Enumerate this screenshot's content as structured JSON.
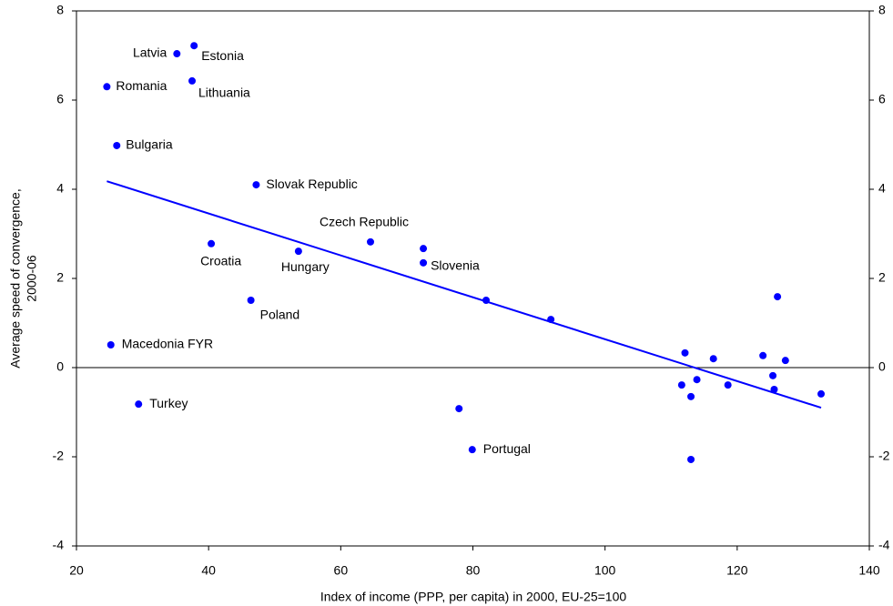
{
  "chart_data": {
    "type": "scatter",
    "x_label": "Index of income (PPP, per capita) in 2000, EU-25=100",
    "y_label": [
      "Average speed of convergence,",
      "2000-06"
    ],
    "color": "#0000ff",
    "x": [
      35.2,
      37.8,
      24.6,
      37.5,
      26.1,
      47.2,
      64.5,
      40.4,
      53.6,
      72.5,
      46.4,
      25.2,
      29.4,
      79.9,
      72.5,
      77.9,
      82.0,
      91.8,
      112.1,
      116.4,
      123.9,
      127.3,
      126.1,
      111.6,
      113.0,
      113.9,
      118.6,
      125.4,
      125.6,
      132.7,
      113.0
    ],
    "values": [
      7.04,
      7.22,
      6.3,
      6.43,
      4.98,
      4.1,
      2.82,
      2.78,
      2.61,
      2.35,
      1.51,
      0.51,
      -0.82,
      -1.84,
      2.67,
      -0.92,
      1.51,
      1.08,
      0.33,
      0.2,
      0.27,
      0.16,
      1.59,
      -0.39,
      -0.65,
      -0.27,
      -0.39,
      -0.18,
      -0.49,
      -0.59,
      -2.06
    ],
    "point_labels": [
      "Latvia",
      "Estonia",
      "Romania",
      "Lithuania",
      "Bulgaria",
      "Slovak Republic",
      "Czech Republic",
      "Croatia",
      "Hungary",
      "Slovenia",
      "Poland",
      "Macedonia FYR",
      "Turkey",
      "Portugal",
      null,
      null,
      null,
      null,
      null,
      null,
      null,
      null,
      null,
      null,
      null,
      null,
      null,
      null,
      null,
      null,
      null
    ],
    "trend": {
      "x": [
        24.6,
        132.7
      ],
      "values": [
        4.18,
        -0.9
      ]
    },
    "xlim": [
      20,
      140
    ],
    "xticks": [
      20,
      40,
      60,
      80,
      100,
      120,
      140
    ],
    "ylim": [
      -4,
      8
    ],
    "yticks": [
      -4,
      -2,
      0,
      2,
      4,
      6,
      8
    ],
    "y2lim": [
      -4,
      8
    ],
    "y2ticks": [
      -4,
      -2,
      0,
      2,
      4,
      6,
      8
    ]
  }
}
